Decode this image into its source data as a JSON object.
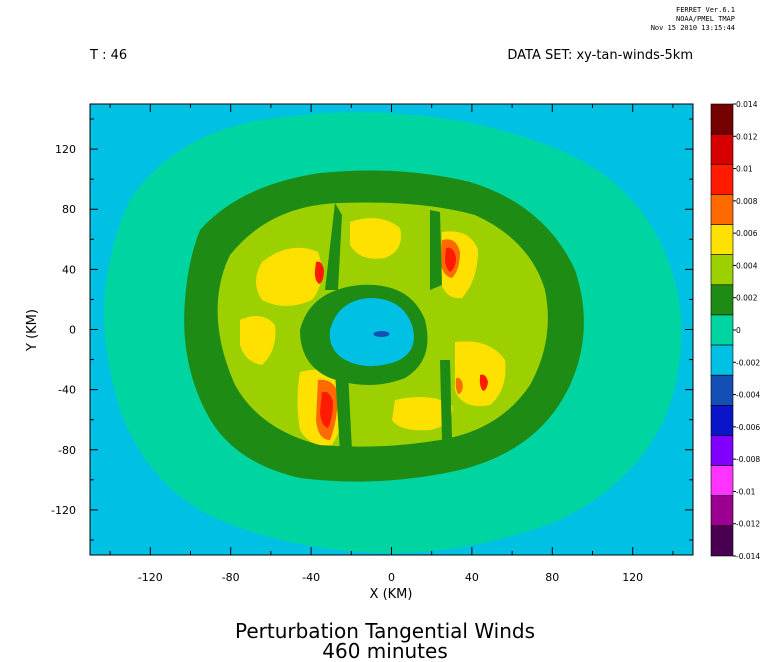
{
  "header": {
    "ferret_lines": [
      "FERRET Ver.6.1",
      "NOAA/PMEL TMAP",
      "Nov 15 2010 13:15:44"
    ],
    "time_label": "T : 46",
    "dataset_label": "DATA SET: xy-tan-winds-5km"
  },
  "chart_data": {
    "type": "heatmap",
    "title": "Perturbation Tangential Winds",
    "subtitle": "460 minutes",
    "xlabel": "X (KM)",
    "ylabel": "Y (KM)",
    "xlim": [
      -150,
      150
    ],
    "ylim": [
      -150,
      150
    ],
    "x_ticks": [
      -120,
      -80,
      -40,
      0,
      40,
      80,
      120
    ],
    "y_ticks": [
      120,
      80,
      40,
      0,
      -40,
      -80,
      -120
    ],
    "x_tick_labels": [
      "-120",
      "-80",
      "-40",
      "0",
      "40",
      "80",
      "120"
    ],
    "y_tick_labels": [
      "120",
      "80",
      "40",
      "0",
      "-40",
      "-80",
      "-120"
    ],
    "colorbar": {
      "levels": [
        -0.014,
        -0.012,
        -0.01,
        -0.008,
        -0.006,
        -0.004,
        -0.002,
        0,
        0.002,
        0.004,
        0.006,
        0.008,
        0.01,
        0.012,
        0.014
      ],
      "labels": [
        "-0.014",
        "-0.012",
        "-0.01",
        "-0.008",
        "-0.006",
        "-0.004",
        "-0.002",
        "0",
        "0.002",
        "0.004",
        "0.006",
        "0.008",
        "0.01",
        "0.012",
        "0.014"
      ],
      "colors": [
        "#4a0050",
        "#9c0090",
        "#e000c8",
        "#ff33ff",
        "#8a2be2",
        "#3f1fe0",
        "#0a14c8",
        "#1450b4",
        "#00c0e4",
        "#00d4a0",
        "#1e8c14",
        "#9cd000",
        "#ffe100",
        "#ff6a00",
        "#ff1a00",
        "#d70000",
        "#740000"
      ],
      "placement": "right"
    },
    "field": {
      "background_level": "-0.002 to 0",
      "outer_ring_level": "0 to 0.002",
      "eyewall_ring_level": "0.002 to 0.004",
      "inner_ring_level": "0.004 to 0.006",
      "max_level": "0.008 to 0.012",
      "eye_level": "-0.004 to -0.002",
      "eye_center_km": [
        -5,
        -3
      ],
      "maxima_km": [
        [
          28,
          45
        ],
        [
          -30,
          -45
        ]
      ]
    }
  }
}
